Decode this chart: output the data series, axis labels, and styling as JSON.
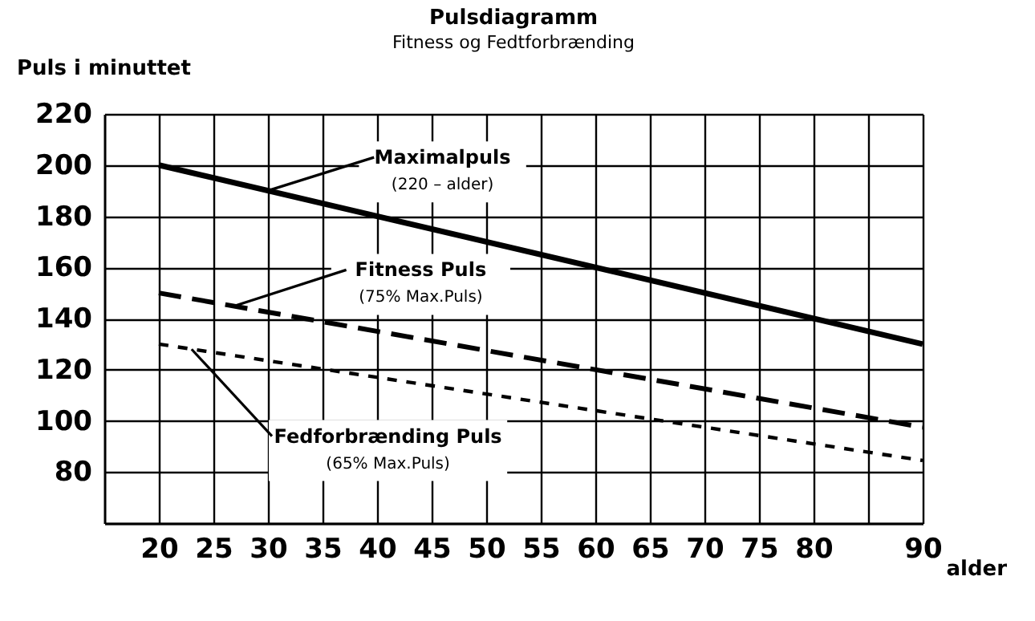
{
  "chart_data": {
    "type": "line",
    "title": "Pulsdiagramm",
    "subtitle": "Fitness og Fedtforbrænding",
    "xlabel": "alder",
    "ylabel": "Puls i minuttet",
    "x": [
      20,
      90
    ],
    "series": [
      {
        "color": "#000000",
        "values": [
          200,
          130
        ],
        "line_style": "solid"
      },
      {
        "color": "#000000",
        "values": [
          150,
          97.5
        ],
        "line_style": "dashed"
      },
      {
        "color": "#000000",
        "values": [
          130,
          84.5
        ],
        "line_style": "dotted"
      }
    ],
    "annotations": [
      {
        "text": "Maximalpuls\n(220 – alder)",
        "x": 30,
        "y": 190
      },
      {
        "text": "Fitness Puls\n(75% Max.Puls)",
        "x": 27,
        "y": 145
      },
      {
        "text": "Fedforbrænding Puls\n(65% Max.Puls)",
        "x": 23,
        "y": 128
      }
    ],
    "xlim": [
      15,
      90
    ],
    "xticks": [
      20,
      25,
      30,
      35,
      40,
      45,
      50,
      55,
      60,
      65,
      70,
      75,
      80,
      {
        "value": 85,
        "label": null
      },
      90
    ],
    "ylim": [
      60,
      220
    ],
    "yticks": [
      {
        "value": 60,
        "label": null
      },
      80,
      100,
      120,
      140,
      160,
      180,
      200,
      220
    ],
    "grid": true,
    "marker": "none"
  }
}
